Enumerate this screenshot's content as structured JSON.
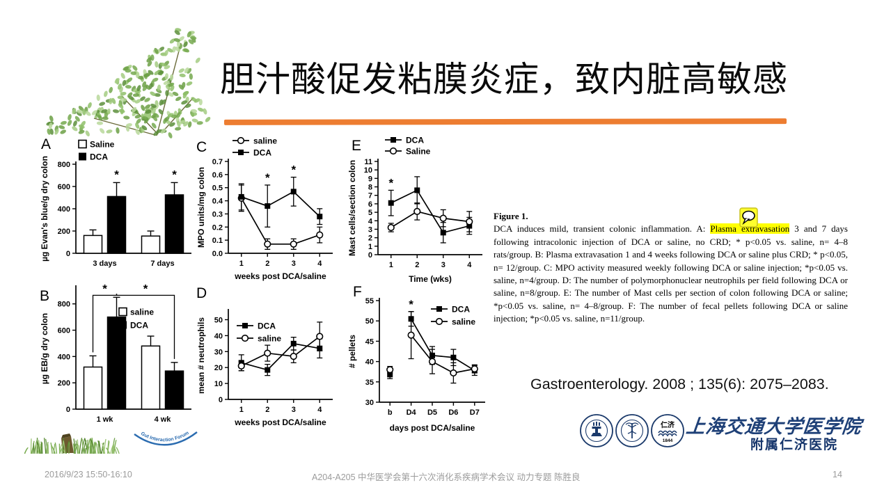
{
  "slide": {
    "title": "胆汁酸促发粘膜炎症，致内脏高敏感",
    "accent_color": "#ED7D31",
    "citation": "Gastroenterology. 2008 ; 135(6): 2075–2083.",
    "caption": {
      "heading": "Figure 1.",
      "part1": "DCA induces mild, transient colonic inflammation. A: ",
      "highlight": "Plasma extravasation",
      "highlight_color": "#FFFF00",
      "part2": " 3 and 7 days following intracolonic injection of DCA or saline, no CRD; * p<0.05 vs. saline, n= 4–8 rats/group. B: Plasma extravasation 1 and 4 weeks following DCA or saline plus CRD; * p<0.05, n= 12/group. C: MPO activity measured weekly following DCA or saline injection; *p<0.05 vs. saline, n=4/group. D: The number of polymorphonuclear neutrophils per field following DCA or saline, n=8/group. E: The number of Mast cells per section of colon following DCA or saline; *p<0.05 vs. saline, n= 4–8/group. F: The number of fecal pellets following DCA or saline injection; *p<0.05 vs. saline, n=11/group."
    },
    "branding": {
      "school": "上海交通大学医学院",
      "hospital": "附属仁济医院",
      "seal3_text": "仁济",
      "seal3_year": "1844",
      "color": "#1B3A6B"
    },
    "watermark": "Gut Interaction Forum",
    "footer": {
      "datetime": "2016/9/23 15:50-16:10",
      "session": "A204-A205 中华医学会第十六次消化系疾病学术会议 动力专题  陈胜良",
      "page": "14"
    }
  },
  "chart_data": [
    {
      "panel": "A",
      "type": "bar",
      "ylabel": "µg Evan's blue/g dry colon",
      "categories": [
        "3 days",
        "7 days"
      ],
      "ylim": [
        0,
        800
      ],
      "yticks": [
        0,
        200,
        400,
        600,
        800
      ],
      "series": [
        {
          "name": "Saline",
          "style": "open",
          "values": [
            160,
            155
          ],
          "errors": [
            50,
            45
          ]
        },
        {
          "name": "DCA",
          "style": "filled",
          "values": [
            510,
            525
          ],
          "errors": [
            125,
            110
          ],
          "stars": [
            0,
            1
          ]
        }
      ],
      "legend_position": "top-left"
    },
    {
      "panel": "B",
      "type": "bar",
      "ylabel": "µg EB/g dry colon",
      "categories": [
        "1 wk",
        "4 wk"
      ],
      "ylim": [
        0,
        920
      ],
      "yticks": [
        0,
        200,
        400,
        600,
        800
      ],
      "series": [
        {
          "name": "saline",
          "style": "open",
          "values": [
            320,
            480
          ],
          "errors": [
            85,
            75
          ]
        },
        {
          "name": "DCA",
          "style": "filled",
          "values": [
            700,
            290
          ],
          "errors": [
            150,
            65
          ]
        }
      ],
      "sig_brackets": [
        {
          "from": [
            0,
            0
          ],
          "to": [
            1,
            0
          ],
          "level": 865
        },
        {
          "from": [
            1,
            0
          ],
          "to": [
            1,
            1
          ],
          "level": 865
        }
      ],
      "legend_position": "inside-right"
    },
    {
      "panel": "C",
      "type": "line",
      "ylabel": "MPO units/mg colon",
      "xlabel": "weeks post DCA/saline",
      "categories": [
        "1",
        "2",
        "3",
        "4"
      ],
      "ylim": [
        0,
        0.7
      ],
      "yticks": [
        0,
        0.1,
        0.2,
        0.3,
        0.4,
        0.5,
        0.6,
        0.7
      ],
      "series": [
        {
          "name": "saline",
          "style": "open",
          "values": [
            0.42,
            0.07,
            0.07,
            0.14
          ],
          "errors": [
            0.1,
            0.04,
            0.04,
            0.06
          ]
        },
        {
          "name": "DCA",
          "style": "filled",
          "values": [
            0.43,
            0.36,
            0.47,
            0.28
          ],
          "errors": [
            0.1,
            0.16,
            0.11,
            0.06
          ],
          "stars": [
            1,
            2
          ]
        }
      ],
      "legend_position": "top-left"
    },
    {
      "panel": "D",
      "type": "line",
      "ylabel": "mean # neutrophils",
      "xlabel": "weeks post DCA/saline",
      "categories": [
        "1",
        "2",
        "3",
        "4"
      ],
      "ylim": [
        0,
        55
      ],
      "yticks": [
        0,
        10,
        20,
        30,
        40,
        50
      ],
      "series": [
        {
          "name": "DCA",
          "style": "filled",
          "values": [
            23,
            18.5,
            35,
            32
          ],
          "errors": [
            5,
            3.5,
            4,
            6
          ]
        },
        {
          "name": "saline",
          "style": "open",
          "values": [
            21,
            29,
            27,
            39.5
          ],
          "errors": [
            3,
            5,
            4,
            9
          ]
        }
      ],
      "legend_position": "inside-top-left"
    },
    {
      "panel": "E",
      "type": "line",
      "ylabel": "Mast cells/section colon",
      "xlabel": "Time (wks)",
      "categories": [
        "1",
        "2",
        "3",
        "4"
      ],
      "ylim": [
        0,
        11
      ],
      "yticks": [
        0,
        1,
        2,
        3,
        4,
        5,
        6,
        7,
        8,
        9,
        10,
        11
      ],
      "series": [
        {
          "name": "DCA",
          "style": "filled",
          "values": [
            6.1,
            7.6,
            2.6,
            3.4
          ],
          "errors": [
            1.5,
            1.6,
            1.2,
            1.0
          ],
          "stars": [
            0
          ]
        },
        {
          "name": "Saline",
          "style": "open",
          "values": [
            3.2,
            5.1,
            4.3,
            3.9
          ],
          "errors": [
            0.5,
            1.0,
            1.0,
            1.2
          ]
        }
      ],
      "legend_position": "top-left"
    },
    {
      "panel": "F",
      "type": "line",
      "ylabel": "# pellets",
      "xlabel": "days post DCA/saline",
      "categories": [
        "b",
        "D4",
        "D5",
        "D6",
        "D7"
      ],
      "ylim": [
        30,
        55
      ],
      "yticks": [
        30,
        35,
        40,
        45,
        50,
        55
      ],
      "line_start": 1,
      "series": [
        {
          "name": "DCA",
          "style": "filled",
          "values": [
            36.8,
            50.5,
            41.5,
            41,
            37.8
          ],
          "errors": [
            1,
            1.8,
            2.2,
            2,
            1.2
          ],
          "stars": [
            1
          ]
        },
        {
          "name": "saline",
          "style": "open",
          "values": [
            38,
            46.5,
            40,
            37.2,
            38.2
          ],
          "errors": [
            0.8,
            5.8,
            3,
            2.5,
            1
          ]
        }
      ],
      "legend_position": "inside-top-right"
    }
  ]
}
